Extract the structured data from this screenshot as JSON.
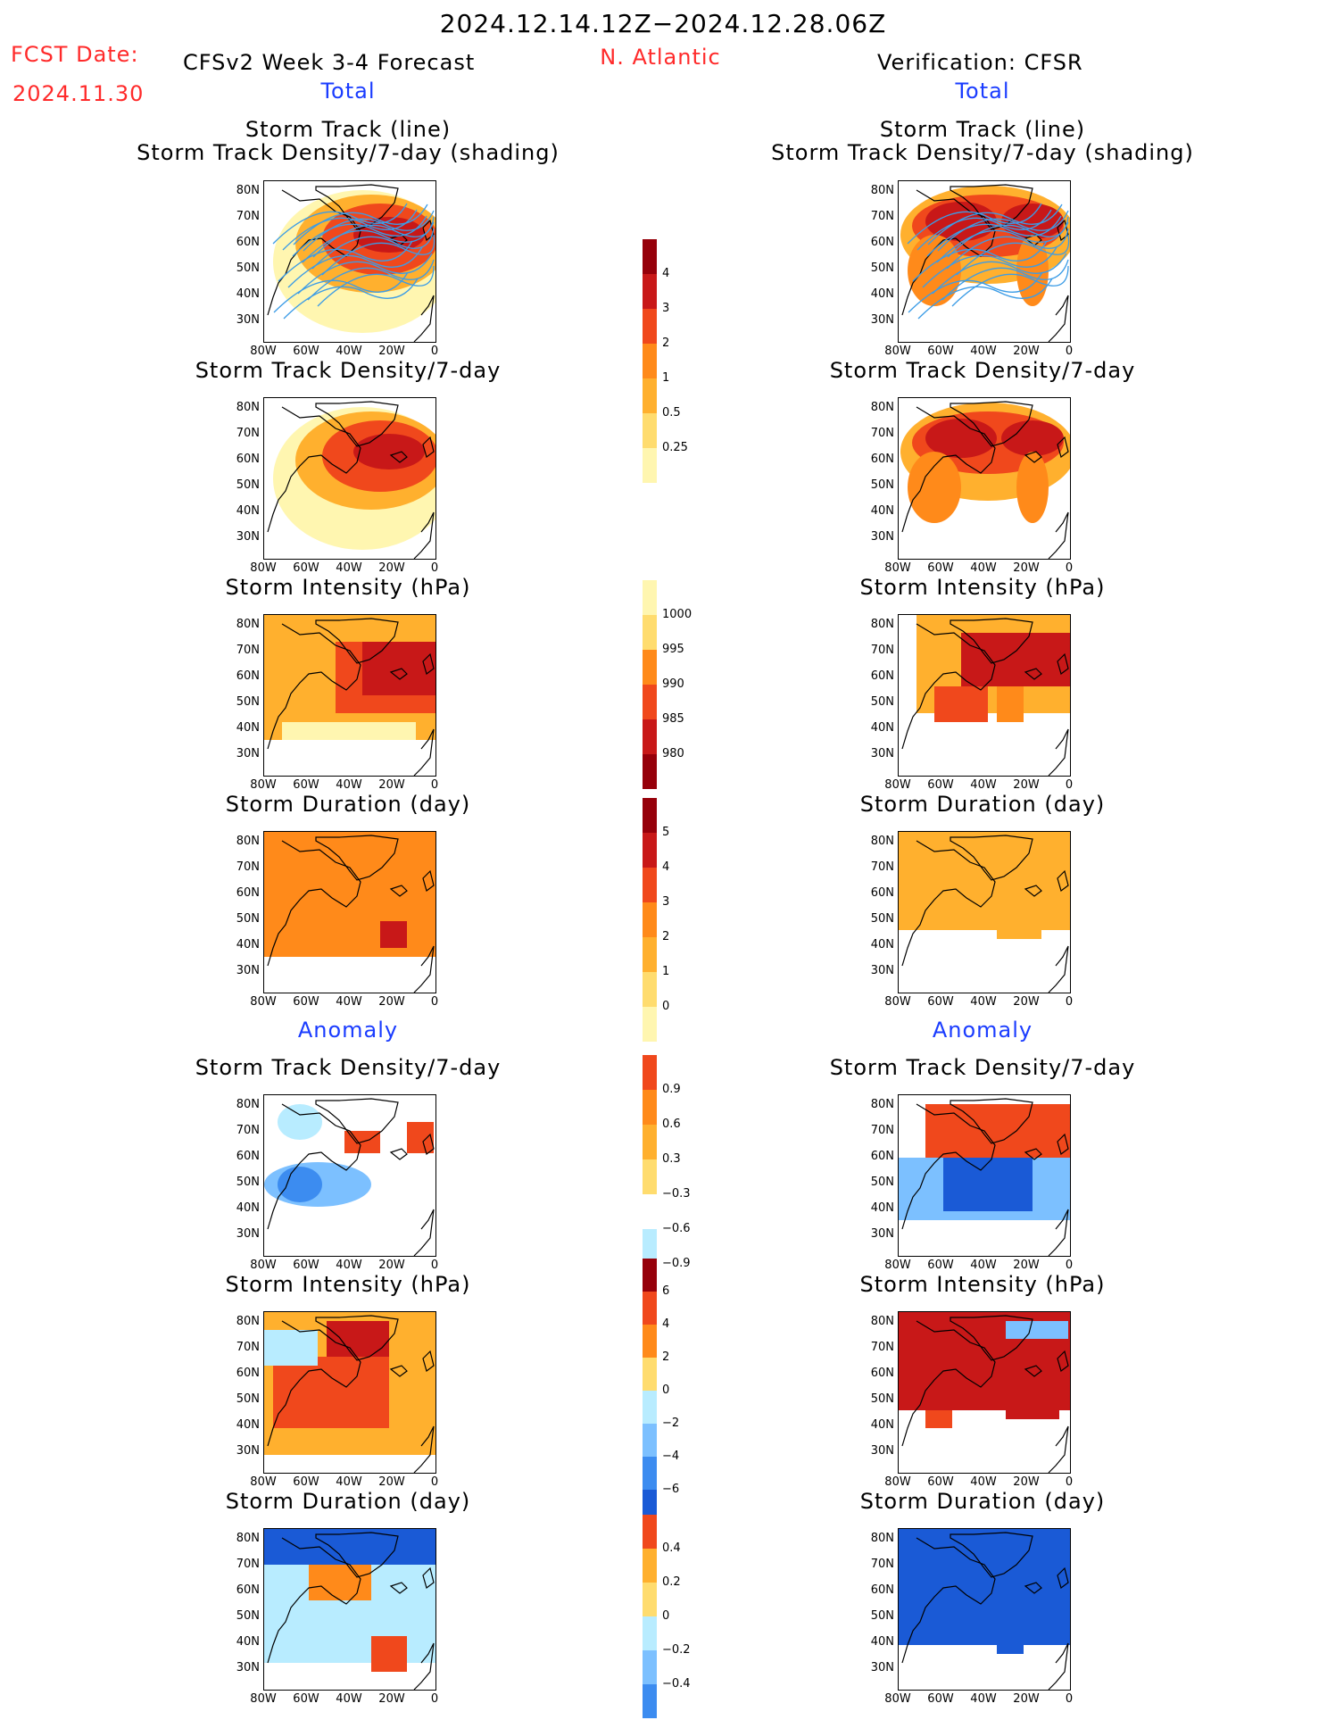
{
  "header": {
    "date_range": "2024.12.14.12Z−2024.12.28.06Z",
    "fcst_label": "FCST Date:",
    "fcst_date": "2024.11.30",
    "model_title": "CFSv2 Week 3-4 Forecast",
    "region": "N. Atlantic",
    "verification": "Verification: CFSR"
  },
  "sections": {
    "total": "Total",
    "anomaly": "Anomaly"
  },
  "panel_titles": {
    "track_line": "Storm Track (line)",
    "track_shading": "Storm Track Density/7-day (shading)",
    "density": "Storm Track Density/7-day",
    "intensity": "Storm Intensity (hPa)",
    "duration": "Storm Duration (day)"
  },
  "axes": {
    "lat_labels": [
      "80N",
      "70N",
      "60N",
      "50N",
      "40N",
      "30N"
    ],
    "lon_labels": [
      "80W",
      "60W",
      "40W",
      "20W",
      "0"
    ]
  },
  "colorbars": {
    "density_total": [
      "4",
      "3",
      "2",
      "1",
      "0.5",
      "0.25"
    ],
    "intensity_total": [
      "1000",
      "995",
      "990",
      "985",
      "980"
    ],
    "duration_total": [
      "5",
      "4",
      "3",
      "2",
      "1",
      "0"
    ],
    "density_anom": [
      "0.9",
      "0.6",
      "0.3",
      "−0.3",
      "−0.6",
      "−0.9"
    ],
    "intensity_anom": [
      "6",
      "4",
      "2",
      "0",
      "−2",
      "−4",
      "−6"
    ],
    "duration_anom": [
      "0.4",
      "0.2",
      "0",
      "−0.2",
      "−0.4"
    ]
  },
  "colors": {
    "warm": [
      "#fff6b0",
      "#ffdc6e",
      "#ffb02e",
      "#ff8a1a",
      "#f0481c",
      "#c81818",
      "#96000a"
    ],
    "cool": [
      "#b8ecff",
      "#7cc0ff",
      "#3c8cf0",
      "#1a5ad6"
    ],
    "track_line": "#3c9ce6",
    "header_red": "#ff2a2a",
    "header_blue": "#1a3cff"
  },
  "chart_data": [
    {
      "type": "heatmap",
      "panel": "forecast-total-track-density-with-tracks",
      "title": "Storm Track Density/7-day (shading)"
    },
    {
      "type": "heatmap",
      "panel": "forecast-total-track-density",
      "title": "Storm Track Density/7-day"
    },
    {
      "type": "heatmap",
      "panel": "forecast-total-intensity",
      "title": "Storm Intensity (hPa)"
    },
    {
      "type": "heatmap",
      "panel": "forecast-total-duration",
      "title": "Storm Duration (day)"
    },
    {
      "type": "heatmap",
      "panel": "forecast-anomaly-density",
      "title": "Storm Track Density/7-day"
    },
    {
      "type": "heatmap",
      "panel": "forecast-anomaly-intensity",
      "title": "Storm Intensity (hPa)"
    },
    {
      "type": "heatmap",
      "panel": "forecast-anomaly-duration",
      "title": "Storm Duration (day)"
    },
    {
      "type": "heatmap",
      "panel": "cfsr-total-track-density-with-tracks",
      "title": "Storm Track Density/7-day (shading)"
    },
    {
      "type": "heatmap",
      "panel": "cfsr-total-track-density",
      "title": "Storm Track Density/7-day"
    },
    {
      "type": "heatmap",
      "panel": "cfsr-total-intensity",
      "title": "Storm Intensity (hPa)"
    },
    {
      "type": "heatmap",
      "panel": "cfsr-total-duration",
      "title": "Storm Duration (day)"
    },
    {
      "type": "heatmap",
      "panel": "cfsr-anomaly-density",
      "title": "Storm Track Density/7-day"
    },
    {
      "type": "heatmap",
      "panel": "cfsr-anomaly-intensity",
      "title": "Storm Intensity (hPa)"
    },
    {
      "type": "heatmap",
      "panel": "cfsr-anomaly-duration",
      "title": "Storm Duration (day)"
    }
  ]
}
